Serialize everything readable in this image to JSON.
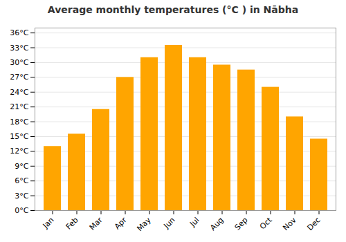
{
  "chart_data": {
    "type": "bar",
    "title": "Average monthly temperatures (°C ) in Nābha",
    "categories": [
      "Jan",
      "Feb",
      "Mar",
      "Apr",
      "May",
      "Jun",
      "Jul",
      "Aug",
      "Sep",
      "Oct",
      "Nov",
      "Dec"
    ],
    "values": [
      13,
      15.5,
      20.5,
      27,
      31,
      33.5,
      31,
      29.5,
      28.5,
      25,
      19,
      14.5
    ],
    "color": "#FFA500",
    "ylim": [
      0,
      37
    ],
    "yticks": [
      {
        "value": 0,
        "label": "0°C"
      },
      {
        "value": 3,
        "label": "3°C"
      },
      {
        "value": 6,
        "label": "6°C"
      },
      {
        "value": 9,
        "label": "9°C"
      },
      {
        "value": 12,
        "label": "12°C"
      },
      {
        "value": 15,
        "label": "15°C"
      },
      {
        "value": 18,
        "label": "18°C"
      },
      {
        "value": 21,
        "label": "21°C"
      },
      {
        "value": 24,
        "label": "24°C"
      },
      {
        "value": 27,
        "label": "27°C"
      },
      {
        "value": 30,
        "label": "30°C"
      },
      {
        "value": 33,
        "label": "33°C"
      },
      {
        "value": 36,
        "label": "36°C"
      }
    ],
    "grid": true
  }
}
